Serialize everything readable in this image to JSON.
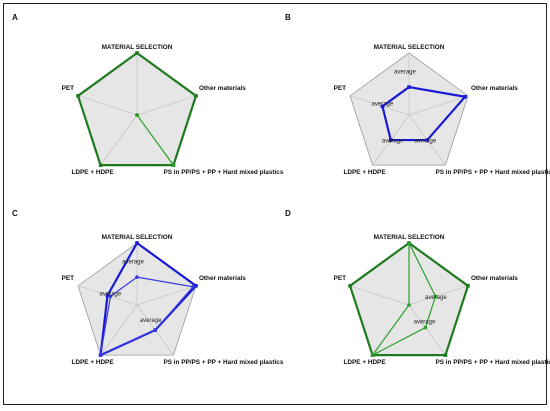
{
  "chart_data": [
    {
      "type": "radar",
      "panel": "A",
      "axes": [
        "MATERIAL SELECTION",
        "Other materials",
        "PS in PP/PS + PP + Hard mixed plastics",
        "LDPE + HDPE",
        "PET"
      ],
      "range": [
        0,
        1
      ],
      "series": [
        {
          "color": "#1f7a1f",
          "values": [
            1,
            1,
            1,
            1,
            1
          ],
          "marker": "square"
        },
        {
          "color": "#2ca02c",
          "values": [
            0,
            0,
            1,
            0,
            0
          ],
          "marker": "circle"
        }
      ],
      "annotations": []
    },
    {
      "type": "radar",
      "panel": "B",
      "axes": [
        "MATERIAL SELECTION",
        "Other materials",
        "PS in PP/PS + PP + Hard mixed plastics",
        "LDPE + HDPE",
        "PET"
      ],
      "range": [
        0,
        1
      ],
      "series": [
        {
          "color": "#1a1ad6",
          "values": [
            0.45,
            0.95,
            0.5,
            0.5,
            0.45
          ],
          "marker": "square"
        }
      ],
      "annotations": [
        "average",
        "average",
        "average",
        "average"
      ]
    },
    {
      "type": "radar",
      "panel": "C",
      "axes": [
        "MATERIAL SELECTION",
        "Other materials",
        "PS in PP/PS + PP + Hard mixed plastics",
        "LDPE + HDPE",
        "PET"
      ],
      "range": [
        0,
        1
      ],
      "series": [
        {
          "color": "#1a1ad6",
          "values": [
            1,
            1,
            0.5,
            1,
            0.5
          ],
          "marker": "square"
        },
        {
          "color": "#3b3be0",
          "values": [
            0.45,
            0.95,
            0.5,
            1,
            0.45
          ],
          "marker": "circle"
        }
      ],
      "annotations": [
        "average",
        "average",
        "average"
      ]
    },
    {
      "type": "radar",
      "panel": "D",
      "axes": [
        "MATERIAL SELECTION",
        "Other materials",
        "PS in PP/PS + PP + Hard mixed plastics",
        "LDPE + HDPE",
        "PET"
      ],
      "range": [
        0,
        1
      ],
      "series": [
        {
          "color": "#1f7a1f",
          "values": [
            1,
            1,
            1,
            1,
            1
          ],
          "marker": "square"
        },
        {
          "color": "#2ca02c",
          "values": [
            1,
            0.45,
            0.45,
            1,
            0
          ],
          "marker": "circle"
        }
      ],
      "annotations": [
        "average",
        "average"
      ]
    }
  ]
}
